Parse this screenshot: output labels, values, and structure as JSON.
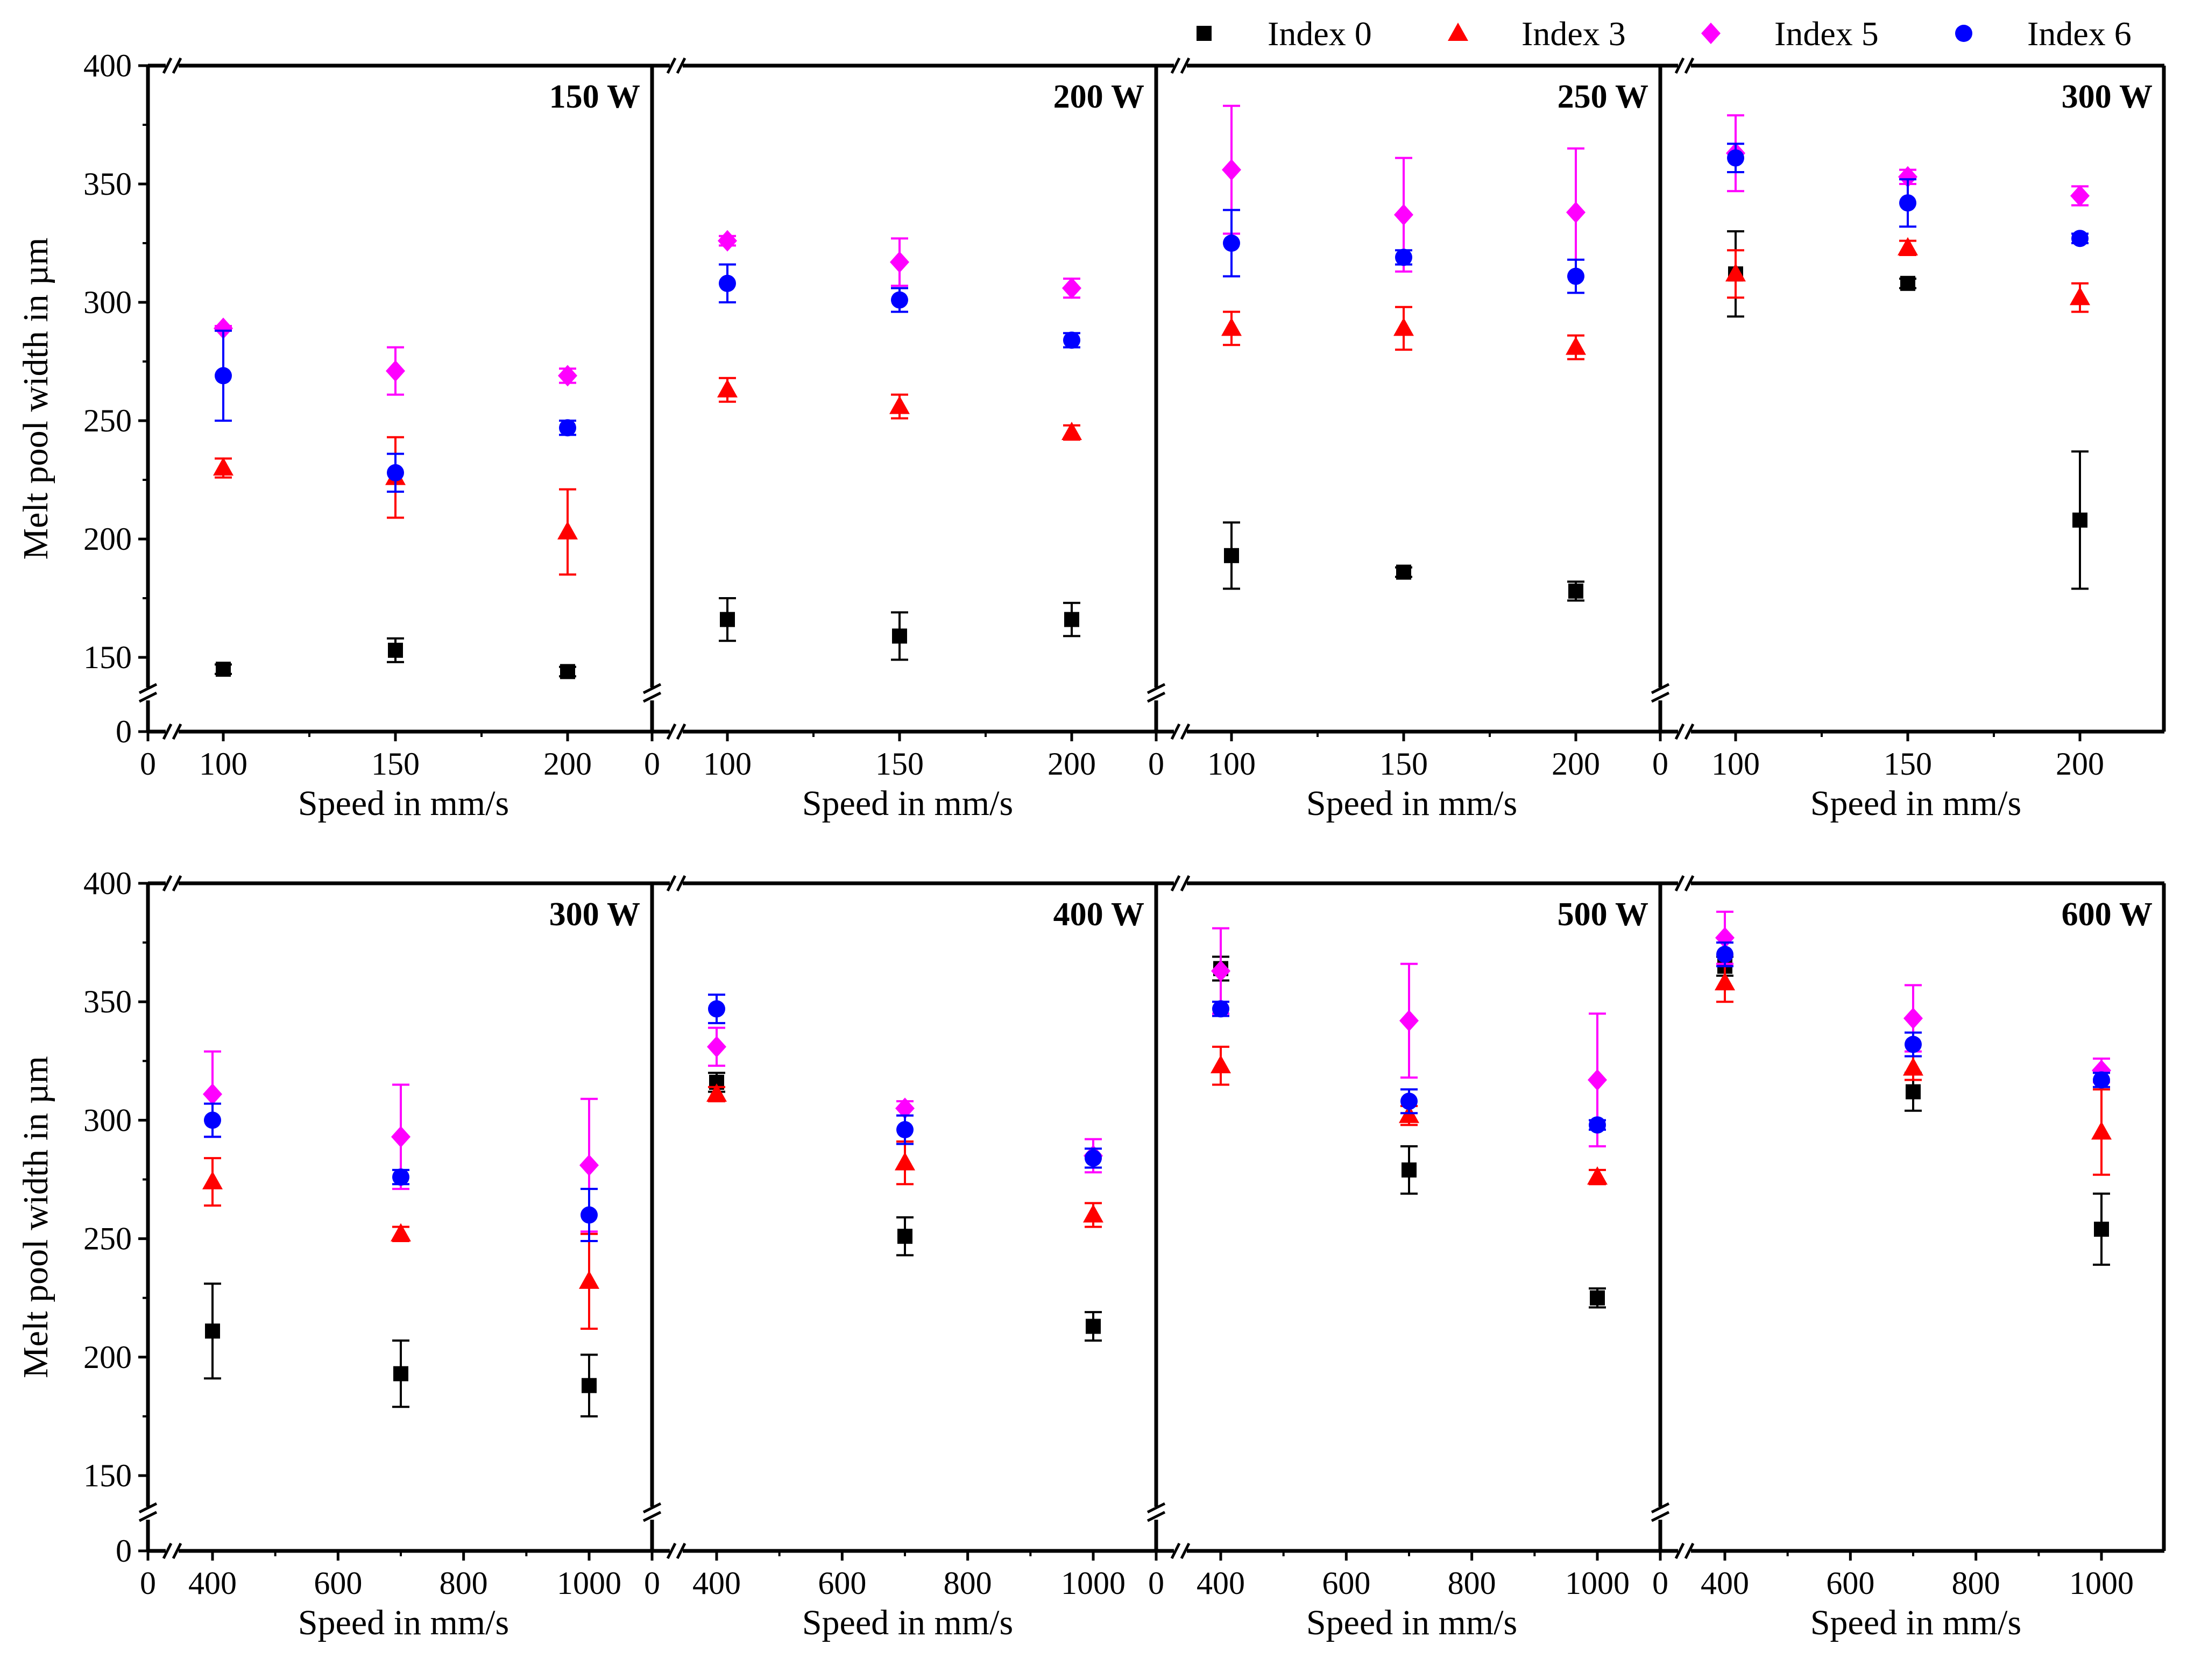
{
  "legend": [
    {
      "name": "Index 0",
      "color": "#000000",
      "marker": "square"
    },
    {
      "name": "Index 3",
      "color": "#ff0000",
      "marker": "triangle"
    },
    {
      "name": "Index 5",
      "color": "#ff00ff",
      "marker": "diamond"
    },
    {
      "name": "Index 6",
      "color": "#0000ff",
      "marker": "circle"
    }
  ],
  "chart_data": [
    {
      "type": "scatter",
      "row": 0,
      "title": "150 W",
      "xlabel": "Speed in mm/s",
      "ylabel": "Melt pool width in µm",
      "xticks": [
        "0",
        "100",
        "150",
        "200"
      ],
      "yticks": [
        "0",
        "150",
        "200",
        "250",
        "300",
        "350",
        "400"
      ],
      "xlim": [
        75,
        225
      ],
      "ylim": [
        130,
        400
      ],
      "axis_break": true,
      "series": [
        {
          "name": "Index 0",
          "x": [
            100,
            150,
            200
          ],
          "y": [
            145,
            153,
            144
          ],
          "err": [
            2,
            5,
            2
          ]
        },
        {
          "name": "Index 3",
          "x": [
            100,
            150,
            200
          ],
          "y": [
            230,
            226,
            203
          ],
          "err": [
            4,
            17,
            18
          ]
        },
        {
          "name": "Index 5",
          "x": [
            100,
            150,
            200
          ],
          "y": [
            289,
            271,
            269
          ],
          "err": [
            1,
            10,
            3
          ]
        },
        {
          "name": "Index 6",
          "x": [
            100,
            150,
            200
          ],
          "y": [
            269,
            228,
            247
          ],
          "err": [
            19,
            8,
            3
          ]
        }
      ]
    },
    {
      "type": "scatter",
      "row": 0,
      "title": "200 W",
      "xlabel": "Speed in mm/s",
      "xticks": [
        "0",
        "100",
        "150",
        "200"
      ],
      "xlim": [
        75,
        225
      ],
      "ylim": [
        130,
        400
      ],
      "axis_break": true,
      "series": [
        {
          "name": "Index 0",
          "x": [
            100,
            150,
            200
          ],
          "y": [
            166,
            159,
            166
          ],
          "err": [
            9,
            10,
            7
          ]
        },
        {
          "name": "Index 3",
          "x": [
            100,
            150,
            200
          ],
          "y": [
            263,
            256,
            245
          ],
          "err": [
            5,
            5,
            3
          ]
        },
        {
          "name": "Index 5",
          "x": [
            100,
            150,
            200
          ],
          "y": [
            326,
            317,
            306
          ],
          "err": [
            2,
            10,
            4
          ]
        },
        {
          "name": "Index 6",
          "x": [
            100,
            150,
            200
          ],
          "y": [
            308,
            301,
            284
          ],
          "err": [
            8,
            5,
            3
          ]
        }
      ]
    },
    {
      "type": "scatter",
      "row": 0,
      "title": "250 W",
      "xlabel": "Speed in mm/s",
      "xticks": [
        "0",
        "100",
        "150",
        "200"
      ],
      "xlim": [
        75,
        225
      ],
      "ylim": [
        130,
        400
      ],
      "axis_break": true,
      "series": [
        {
          "name": "Index 0",
          "x": [
            100,
            150,
            200
          ],
          "y": [
            193,
            186,
            178
          ],
          "err": [
            14,
            2,
            4
          ]
        },
        {
          "name": "Index 3",
          "x": [
            100,
            150,
            200
          ],
          "y": [
            289,
            289,
            281
          ],
          "err": [
            7,
            9,
            5
          ]
        },
        {
          "name": "Index 5",
          "x": [
            100,
            150,
            200
          ],
          "y": [
            356,
            337,
            338
          ],
          "err": [
            27,
            24,
            27
          ]
        },
        {
          "name": "Index 6",
          "x": [
            100,
            150,
            200
          ],
          "y": [
            325,
            319,
            311
          ],
          "err": [
            14,
            3,
            7
          ]
        }
      ]
    },
    {
      "type": "scatter",
      "row": 0,
      "title": "300 W",
      "xlabel": "Speed in mm/s",
      "xticks": [
        "0",
        "100",
        "150",
        "200"
      ],
      "xlim": [
        75,
        225
      ],
      "ylim": [
        130,
        400
      ],
      "axis_break": true,
      "series": [
        {
          "name": "Index 0",
          "x": [
            100,
            150,
            200
          ],
          "y": [
            312,
            308,
            208
          ],
          "err": [
            18,
            2,
            29
          ]
        },
        {
          "name": "Index 3",
          "x": [
            100,
            150,
            200
          ],
          "y": [
            312,
            323,
            302
          ],
          "err": [
            10,
            3,
            6
          ]
        },
        {
          "name": "Index 5",
          "x": [
            100,
            150,
            200
          ],
          "y": [
            363,
            353,
            345
          ],
          "err": [
            16,
            3,
            4
          ]
        },
        {
          "name": "Index 6",
          "x": [
            100,
            150,
            200
          ],
          "y": [
            361,
            342,
            327
          ],
          "err": [
            6,
            10,
            2
          ]
        }
      ]
    },
    {
      "type": "scatter",
      "row": 1,
      "title": "300 W",
      "xlabel": "Speed in mm/s",
      "ylabel": "Melt pool width in µm",
      "xticks": [
        "0",
        "400",
        "600",
        "800",
        "1000"
      ],
      "yticks": [
        "0",
        "150",
        "200",
        "250",
        "300",
        "350",
        "400"
      ],
      "xlim": [
        300,
        1100
      ],
      "ylim": [
        130,
        400
      ],
      "axis_break": true,
      "series": [
        {
          "name": "Index 0",
          "x": [
            400,
            700,
            1000
          ],
          "y": [
            211,
            193,
            188
          ],
          "err": [
            20,
            14,
            13
          ]
        },
        {
          "name": "Index 3",
          "x": [
            400,
            700,
            1000
          ],
          "y": [
            274,
            252,
            232
          ],
          "err": [
            10,
            3,
            20
          ]
        },
        {
          "name": "Index 5",
          "x": [
            400,
            700,
            1000
          ],
          "y": [
            311,
            293,
            281
          ],
          "err": [
            18,
            22,
            28
          ]
        },
        {
          "name": "Index 6",
          "x": [
            400,
            700,
            1000
          ],
          "y": [
            300,
            276,
            260
          ],
          "err": [
            7,
            3,
            11
          ]
        }
      ]
    },
    {
      "type": "scatter",
      "row": 1,
      "title": "400 W",
      "xlabel": "Speed in mm/s",
      "xticks": [
        "0",
        "400",
        "600",
        "800",
        "1000"
      ],
      "xlim": [
        300,
        1100
      ],
      "ylim": [
        130,
        400
      ],
      "axis_break": true,
      "series": [
        {
          "name": "Index 0",
          "x": [
            400,
            700,
            1000
          ],
          "y": [
            316,
            251,
            213
          ],
          "err": [
            4,
            8,
            6
          ]
        },
        {
          "name": "Index 3",
          "x": [
            400,
            700,
            1000
          ],
          "y": [
            311,
            282,
            260
          ],
          "err": [
            3,
            9,
            5
          ]
        },
        {
          "name": "Index 5",
          "x": [
            400,
            700,
            1000
          ],
          "y": [
            331,
            305,
            285
          ],
          "err": [
            8,
            3,
            7
          ]
        },
        {
          "name": "Index 6",
          "x": [
            400,
            700,
            1000
          ],
          "y": [
            347,
            296,
            284
          ],
          "err": [
            6,
            6,
            4
          ]
        }
      ]
    },
    {
      "type": "scatter",
      "row": 1,
      "title": "500 W",
      "xlabel": "Speed in mm/s",
      "xticks": [
        "0",
        "400",
        "600",
        "800",
        "1000"
      ],
      "xlim": [
        300,
        1100
      ],
      "ylim": [
        130,
        400
      ],
      "axis_break": true,
      "series": [
        {
          "name": "Index 0",
          "x": [
            400,
            700,
            1000
          ],
          "y": [
            364,
            279,
            225
          ],
          "err": [
            5,
            10,
            4
          ]
        },
        {
          "name": "Index 3",
          "x": [
            400,
            700,
            1000
          ],
          "y": [
            323,
            302,
            276
          ],
          "err": [
            8,
            4,
            3
          ]
        },
        {
          "name": "Index 5",
          "x": [
            400,
            700,
            1000
          ],
          "y": [
            363,
            342,
            317
          ],
          "err": [
            18,
            24,
            28
          ]
        },
        {
          "name": "Index 6",
          "x": [
            400,
            700,
            1000
          ],
          "y": [
            347,
            308,
            298
          ],
          "err": [
            3,
            5,
            2
          ]
        }
      ]
    },
    {
      "type": "scatter",
      "row": 1,
      "title": "600 W",
      "xlabel": "Speed in mm/s",
      "xticks": [
        "0",
        "400",
        "600",
        "800",
        "1000"
      ],
      "xlim": [
        300,
        1100
      ],
      "ylim": [
        130,
        400
      ],
      "axis_break": true,
      "series": [
        {
          "name": "Index 0",
          "x": [
            400,
            700,
            1000
          ],
          "y": [
            365,
            312,
            254
          ],
          "err": [
            4,
            8,
            15
          ]
        },
        {
          "name": "Index 3",
          "x": [
            400,
            700,
            1000
          ],
          "y": [
            358,
            322,
            295
          ],
          "err": [
            8,
            5,
            18
          ]
        },
        {
          "name": "Index 5",
          "x": [
            400,
            700,
            1000
          ],
          "y": [
            377,
            343,
            321
          ],
          "err": [
            11,
            14,
            5
          ]
        },
        {
          "name": "Index 6",
          "x": [
            400,
            700,
            1000
          ],
          "y": [
            370,
            332,
            317
          ],
          "err": [
            5,
            5,
            3
          ]
        }
      ]
    }
  ]
}
